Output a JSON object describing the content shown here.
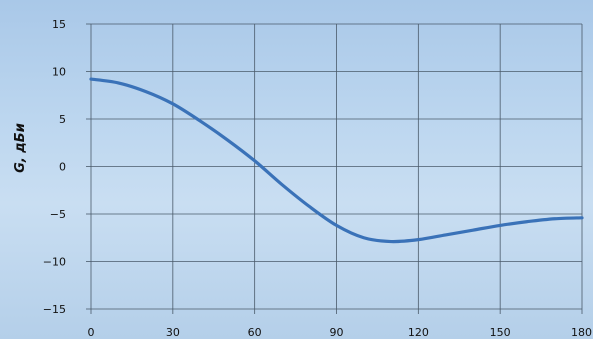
{
  "chart_data": {
    "type": "line",
    "title": "",
    "xlabel": "",
    "ylabel": "G, дБи",
    "xlim": [
      0,
      180
    ],
    "ylim": [
      -15,
      15
    ],
    "x_ticks": [
      "0",
      "30",
      "60",
      "90",
      "120",
      "150",
      "180"
    ],
    "y_ticks": [
      "15",
      "10",
      "5",
      "0",
      "−5",
      "−10",
      "−15"
    ],
    "grid": true,
    "legend": "none",
    "series": [
      {
        "color": "#3a72b8",
        "x": [
          0,
          10,
          20,
          30,
          40,
          50,
          60,
          70,
          80,
          90,
          100,
          110,
          120,
          130,
          140,
          150,
          160,
          170,
          180
        ],
        "y": [
          9.2,
          8.8,
          7.9,
          6.6,
          4.8,
          2.8,
          0.6,
          -1.9,
          -4.2,
          -6.2,
          -7.5,
          -7.9,
          -7.7,
          -7.2,
          -6.7,
          -6.2,
          -5.8,
          -5.5,
          -5.4
        ]
      }
    ]
  }
}
